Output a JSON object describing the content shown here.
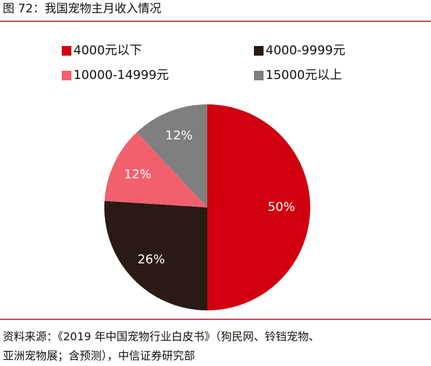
{
  "chart_data": {
    "type": "pie",
    "title": "图 72：我国宠物主月收入情况",
    "categories": [
      "4000元以下",
      "4000-9999元",
      "10000-14999元",
      "15000元以上"
    ],
    "values": [
      50,
      26,
      12,
      12
    ],
    "value_labels": [
      "50%",
      "26%",
      "12%",
      "12%"
    ],
    "colors": [
      "#d0000f",
      "#2a1a16",
      "#f2606e",
      "#7f7f7f"
    ],
    "source": [
      "资料来源：《2019 年中国宠物行业白皮书》（狗民网、铃铛宠物、",
      "亚洲宠物展；含预测），中信证券研究部"
    ]
  }
}
